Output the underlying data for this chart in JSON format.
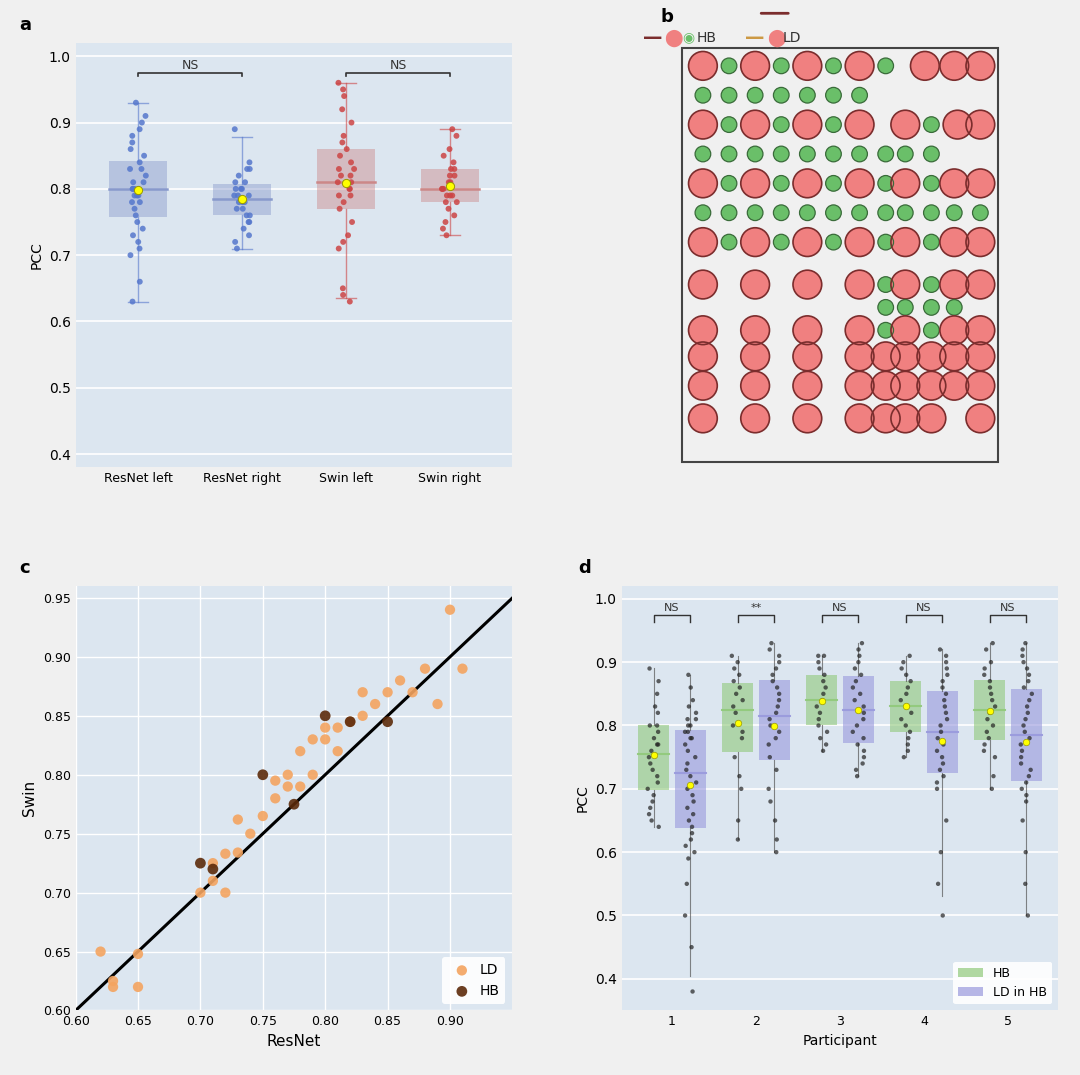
{
  "panel_a": {
    "resnet_left": [
      0.93,
      0.91,
      0.9,
      0.89,
      0.88,
      0.87,
      0.86,
      0.85,
      0.84,
      0.83,
      0.83,
      0.82,
      0.81,
      0.81,
      0.8,
      0.8,
      0.8,
      0.79,
      0.79,
      0.79,
      0.78,
      0.78,
      0.77,
      0.76,
      0.75,
      0.74,
      0.73,
      0.72,
      0.71,
      0.7,
      0.66,
      0.63
    ],
    "resnet_right": [
      0.89,
      0.84,
      0.83,
      0.83,
      0.82,
      0.81,
      0.81,
      0.8,
      0.8,
      0.8,
      0.79,
      0.79,
      0.79,
      0.78,
      0.78,
      0.78,
      0.77,
      0.77,
      0.76,
      0.76,
      0.75,
      0.75,
      0.74,
      0.73,
      0.72,
      0.71
    ],
    "swin_left": [
      0.96,
      0.95,
      0.94,
      0.92,
      0.9,
      0.88,
      0.87,
      0.86,
      0.85,
      0.84,
      0.83,
      0.83,
      0.82,
      0.82,
      0.81,
      0.81,
      0.8,
      0.8,
      0.79,
      0.79,
      0.78,
      0.77,
      0.75,
      0.73,
      0.72,
      0.71,
      0.65,
      0.64,
      0.63
    ],
    "swin_right": [
      0.89,
      0.88,
      0.86,
      0.85,
      0.84,
      0.83,
      0.83,
      0.82,
      0.82,
      0.81,
      0.81,
      0.8,
      0.8,
      0.8,
      0.79,
      0.79,
      0.79,
      0.78,
      0.78,
      0.77,
      0.76,
      0.75,
      0.74,
      0.73
    ],
    "ylim": [
      0.38,
      1.02
    ],
    "yticks": [
      0.4,
      0.5,
      0.6,
      0.7,
      0.8,
      0.9,
      1.0
    ],
    "xlabel_labels": [
      "ResNet left",
      "ResNet right",
      "Swin left",
      "Swin right"
    ],
    "ylabel": "PCC",
    "bg_color": "#dce6f0",
    "blue_color": "#5577cc",
    "red_color": "#cc4444",
    "blue_box_color": "#8899cc",
    "red_box_color": "#cc8888",
    "mean_color": "#ffff00"
  },
  "panel_b": {
    "hb_color": "#f08080",
    "ld_color": "#6abf69",
    "hb_outline": "#7b2d2d",
    "ld_outline": "#3a6b3a"
  },
  "panel_c": {
    "ld_x": [
      0.62,
      0.63,
      0.65,
      0.65,
      0.63,
      0.7,
      0.71,
      0.71,
      0.72,
      0.72,
      0.73,
      0.73,
      0.74,
      0.75,
      0.76,
      0.76,
      0.77,
      0.77,
      0.78,
      0.78,
      0.79,
      0.79,
      0.8,
      0.8,
      0.81,
      0.81,
      0.82,
      0.83,
      0.83,
      0.84,
      0.85,
      0.86,
      0.87,
      0.88,
      0.89,
      0.9,
      0.91
    ],
    "ld_y": [
      0.65,
      0.62,
      0.62,
      0.648,
      0.625,
      0.7,
      0.71,
      0.725,
      0.733,
      0.7,
      0.734,
      0.762,
      0.75,
      0.765,
      0.78,
      0.795,
      0.8,
      0.79,
      0.79,
      0.82,
      0.8,
      0.83,
      0.83,
      0.84,
      0.82,
      0.84,
      0.845,
      0.85,
      0.87,
      0.86,
      0.87,
      0.88,
      0.87,
      0.89,
      0.86,
      0.94,
      0.89
    ],
    "hb_x": [
      0.7,
      0.71,
      0.75,
      0.775,
      0.8,
      0.82,
      0.85
    ],
    "hb_y": [
      0.725,
      0.72,
      0.8,
      0.775,
      0.85,
      0.845,
      0.845
    ],
    "line_x": [
      0.6,
      0.95
    ],
    "line_y": [
      0.6,
      0.95
    ],
    "xlim": [
      0.6,
      0.95
    ],
    "ylim": [
      0.6,
      0.96
    ],
    "xticks": [
      0.6,
      0.65,
      0.7,
      0.75,
      0.8,
      0.85,
      0.9
    ],
    "yticks": [
      0.6,
      0.65,
      0.7,
      0.75,
      0.8,
      0.85,
      0.9,
      0.95
    ],
    "xlabel": "ResNet",
    "ylabel": "Swin",
    "ld_dot_color": "#f4a460",
    "hb_dot_color": "#5c2a0a",
    "bg_color": "#dce6f0"
  },
  "panel_d": {
    "groups": [
      1,
      2,
      3,
      4,
      5
    ],
    "hb_data": {
      "1": [
        0.89,
        0.87,
        0.85,
        0.83,
        0.82,
        0.8,
        0.8,
        0.79,
        0.78,
        0.77,
        0.77,
        0.76,
        0.75,
        0.74,
        0.73,
        0.72,
        0.71,
        0.7,
        0.69,
        0.68,
        0.67,
        0.66,
        0.65,
        0.64
      ],
      "2": [
        0.91,
        0.9,
        0.89,
        0.88,
        0.87,
        0.86,
        0.85,
        0.84,
        0.83,
        0.82,
        0.8,
        0.79,
        0.78,
        0.75,
        0.72,
        0.7,
        0.65,
        0.62
      ],
      "3": [
        0.91,
        0.91,
        0.9,
        0.89,
        0.88,
        0.87,
        0.86,
        0.85,
        0.84,
        0.83,
        0.82,
        0.81,
        0.8,
        0.79,
        0.78,
        0.77,
        0.76
      ],
      "4": [
        0.91,
        0.9,
        0.89,
        0.88,
        0.87,
        0.86,
        0.85,
        0.84,
        0.83,
        0.82,
        0.81,
        0.8,
        0.79,
        0.78,
        0.77,
        0.76,
        0.75
      ],
      "5": [
        0.93,
        0.92,
        0.9,
        0.89,
        0.88,
        0.87,
        0.86,
        0.85,
        0.84,
        0.83,
        0.82,
        0.81,
        0.8,
        0.79,
        0.78,
        0.77,
        0.76,
        0.75,
        0.72,
        0.7
      ]
    },
    "ld_data": {
      "1": [
        0.88,
        0.86,
        0.84,
        0.83,
        0.82,
        0.81,
        0.81,
        0.8,
        0.8,
        0.79,
        0.79,
        0.78,
        0.78,
        0.77,
        0.76,
        0.75,
        0.74,
        0.73,
        0.72,
        0.71,
        0.7,
        0.69,
        0.68,
        0.67,
        0.66,
        0.65,
        0.64,
        0.63,
        0.62,
        0.61,
        0.6,
        0.59,
        0.55,
        0.5,
        0.45,
        0.38
      ],
      "2": [
        0.93,
        0.92,
        0.91,
        0.9,
        0.89,
        0.88,
        0.87,
        0.86,
        0.85,
        0.84,
        0.83,
        0.82,
        0.81,
        0.8,
        0.79,
        0.78,
        0.77,
        0.75,
        0.73,
        0.7,
        0.68,
        0.65,
        0.62,
        0.6
      ],
      "3": [
        0.93,
        0.92,
        0.91,
        0.9,
        0.89,
        0.88,
        0.87,
        0.86,
        0.85,
        0.84,
        0.83,
        0.82,
        0.81,
        0.8,
        0.79,
        0.78,
        0.77,
        0.76,
        0.75,
        0.74,
        0.73,
        0.72
      ],
      "4": [
        0.92,
        0.91,
        0.9,
        0.89,
        0.88,
        0.87,
        0.86,
        0.85,
        0.84,
        0.83,
        0.82,
        0.81,
        0.8,
        0.79,
        0.78,
        0.77,
        0.76,
        0.75,
        0.74,
        0.73,
        0.72,
        0.71,
        0.7,
        0.65,
        0.6,
        0.55,
        0.5
      ],
      "5": [
        0.93,
        0.92,
        0.91,
        0.9,
        0.89,
        0.88,
        0.87,
        0.86,
        0.85,
        0.84,
        0.83,
        0.82,
        0.81,
        0.8,
        0.79,
        0.78,
        0.77,
        0.76,
        0.75,
        0.74,
        0.73,
        0.72,
        0.71,
        0.7,
        0.69,
        0.68,
        0.65,
        0.6,
        0.55,
        0.5
      ]
    },
    "ylim": [
      0.35,
      1.02
    ],
    "yticks": [
      0.4,
      0.5,
      0.6,
      0.7,
      0.8,
      0.9,
      1.0
    ],
    "ylabel": "PCC",
    "xlabel": "Participant",
    "hb_box_color": "#90c97a",
    "ld_box_color": "#9999dd",
    "dot_color": "#222222",
    "mean_color": "#ffff00",
    "bg_color": "#dce6f0",
    "sig_labels": [
      "NS",
      "**",
      "NS",
      "NS",
      "NS"
    ]
  }
}
